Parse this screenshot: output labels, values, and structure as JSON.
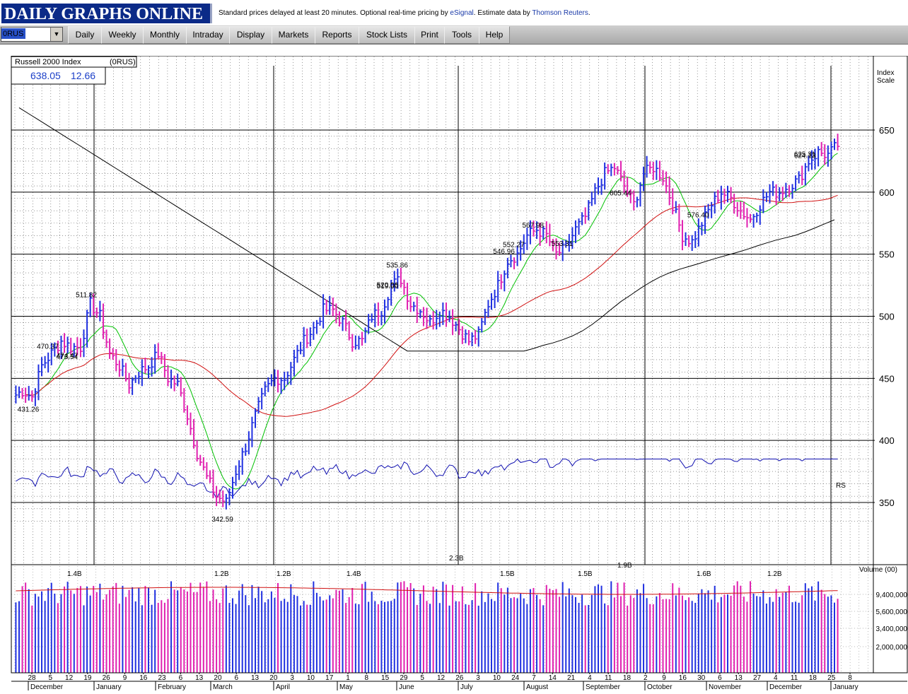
{
  "banner": {
    "logo": "DAILY GRAPHS ONLINE",
    "notice_pre": "Standard prices delayed at least 20 minutes. Optional real-time pricing by ",
    "notice_link1": "eSignal",
    "notice_mid": ". Estimate data by ",
    "notice_link2": "Thomson Reuters",
    "notice_post": "."
  },
  "toolbar": {
    "symbol": "0RUS",
    "buttons": [
      "Daily",
      "Weekly",
      "Monthly",
      "Intraday",
      "Display",
      "Markets",
      "Reports",
      "Stock Lists",
      "Print",
      "Tools",
      "Help"
    ]
  },
  "chart_data": {
    "type": "bar",
    "title": "Russell 2000 Index",
    "symbol": "(0RUS)",
    "last_price": "638.05",
    "change": "12.66",
    "y_axis_title": [
      "Index",
      "Scale"
    ],
    "ylim": [
      308,
      655
    ],
    "y_ticks": [
      650,
      600,
      550,
      500,
      450,
      400,
      350
    ],
    "month_labels": [
      "December",
      "January",
      "February",
      "March",
      "April",
      "May",
      "June",
      "July",
      "August",
      "September",
      "October",
      "November",
      "December",
      "January"
    ],
    "day_labels": [
      "28",
      "5",
      "12",
      "19",
      "26",
      "9",
      "16",
      "23",
      "6",
      "13",
      "20",
      "6",
      "13",
      "20",
      "3",
      "10",
      "17",
      "1",
      "8",
      "15",
      "29",
      "5",
      "12",
      "26",
      "3",
      "10",
      "24",
      "7",
      "14",
      "21",
      "4",
      "11",
      "18",
      "2",
      "9",
      "16",
      "30",
      "6",
      "13",
      "27",
      "4",
      "11",
      "18",
      "25",
      "8"
    ],
    "weekly_closes": [
      440,
      435,
      460,
      470,
      480,
      475,
      475,
      510,
      500,
      470,
      460,
      445,
      455,
      460,
      470,
      450,
      445,
      420,
      390,
      370,
      355,
      350,
      375,
      395,
      420,
      440,
      450,
      450,
      465,
      480,
      490,
      505,
      505,
      495,
      480,
      480,
      500,
      505,
      525,
      530,
      510,
      505,
      495,
      505,
      500,
      490,
      480,
      485,
      510,
      525,
      545,
      550,
      565,
      570,
      565,
      550,
      555,
      570,
      580,
      600,
      615,
      620,
      605,
      590,
      615,
      620,
      612,
      590,
      565,
      560,
      575,
      590,
      600,
      595,
      585,
      578,
      590,
      600,
      600,
      605,
      610,
      625,
      632,
      630,
      638
    ],
    "price_annotations": [
      {
        "label": "519.00",
        "price": 519.0
      },
      {
        "label": "474.47",
        "price": 474.47
      },
      {
        "label": "431.26",
        "price": 431.26
      },
      {
        "label": "342.59",
        "price": 342.59
      },
      {
        "label": "511.82",
        "price": 511.82
      },
      {
        "label": "470.37",
        "price": 470.37
      },
      {
        "label": "535.86",
        "price": 535.86
      },
      {
        "label": "520.06",
        "price": 520.06
      },
      {
        "label": "473.54",
        "price": 473.54
      },
      {
        "label": "546.96",
        "price": 546.96
      },
      {
        "label": "552.27",
        "price": 552.27
      },
      {
        "label": "625.31",
        "price": 625.31
      },
      {
        "label": "576.40",
        "price": 576.4
      },
      {
        "label": "624.13",
        "price": 624.13
      },
      {
        "label": "553.31",
        "price": 553.31
      },
      {
        "label": "605.44",
        "price": 605.44
      },
      {
        "label": "567.98",
        "price": 567.98
      }
    ],
    "rs_label": "RS",
    "volume": {
      "title": "Volume (00)",
      "ticks": [
        "9,400,000",
        "5,600,000",
        "3,400,000",
        "2,000,000"
      ],
      "annotations": [
        "1.4B",
        "1.2B",
        "1.2B",
        "1.4B",
        "2.3B",
        "1.5B",
        "1.5B",
        "1.9B",
        "1.6B",
        "1.2B"
      ]
    }
  },
  "colors": {
    "up_bar": "#2030e0",
    "down_bar": "#e020b0",
    "ma_short": "#00c000",
    "ma_mid": "#d01010",
    "ma_long": "#000000",
    "rs_line": "#1010b0"
  }
}
